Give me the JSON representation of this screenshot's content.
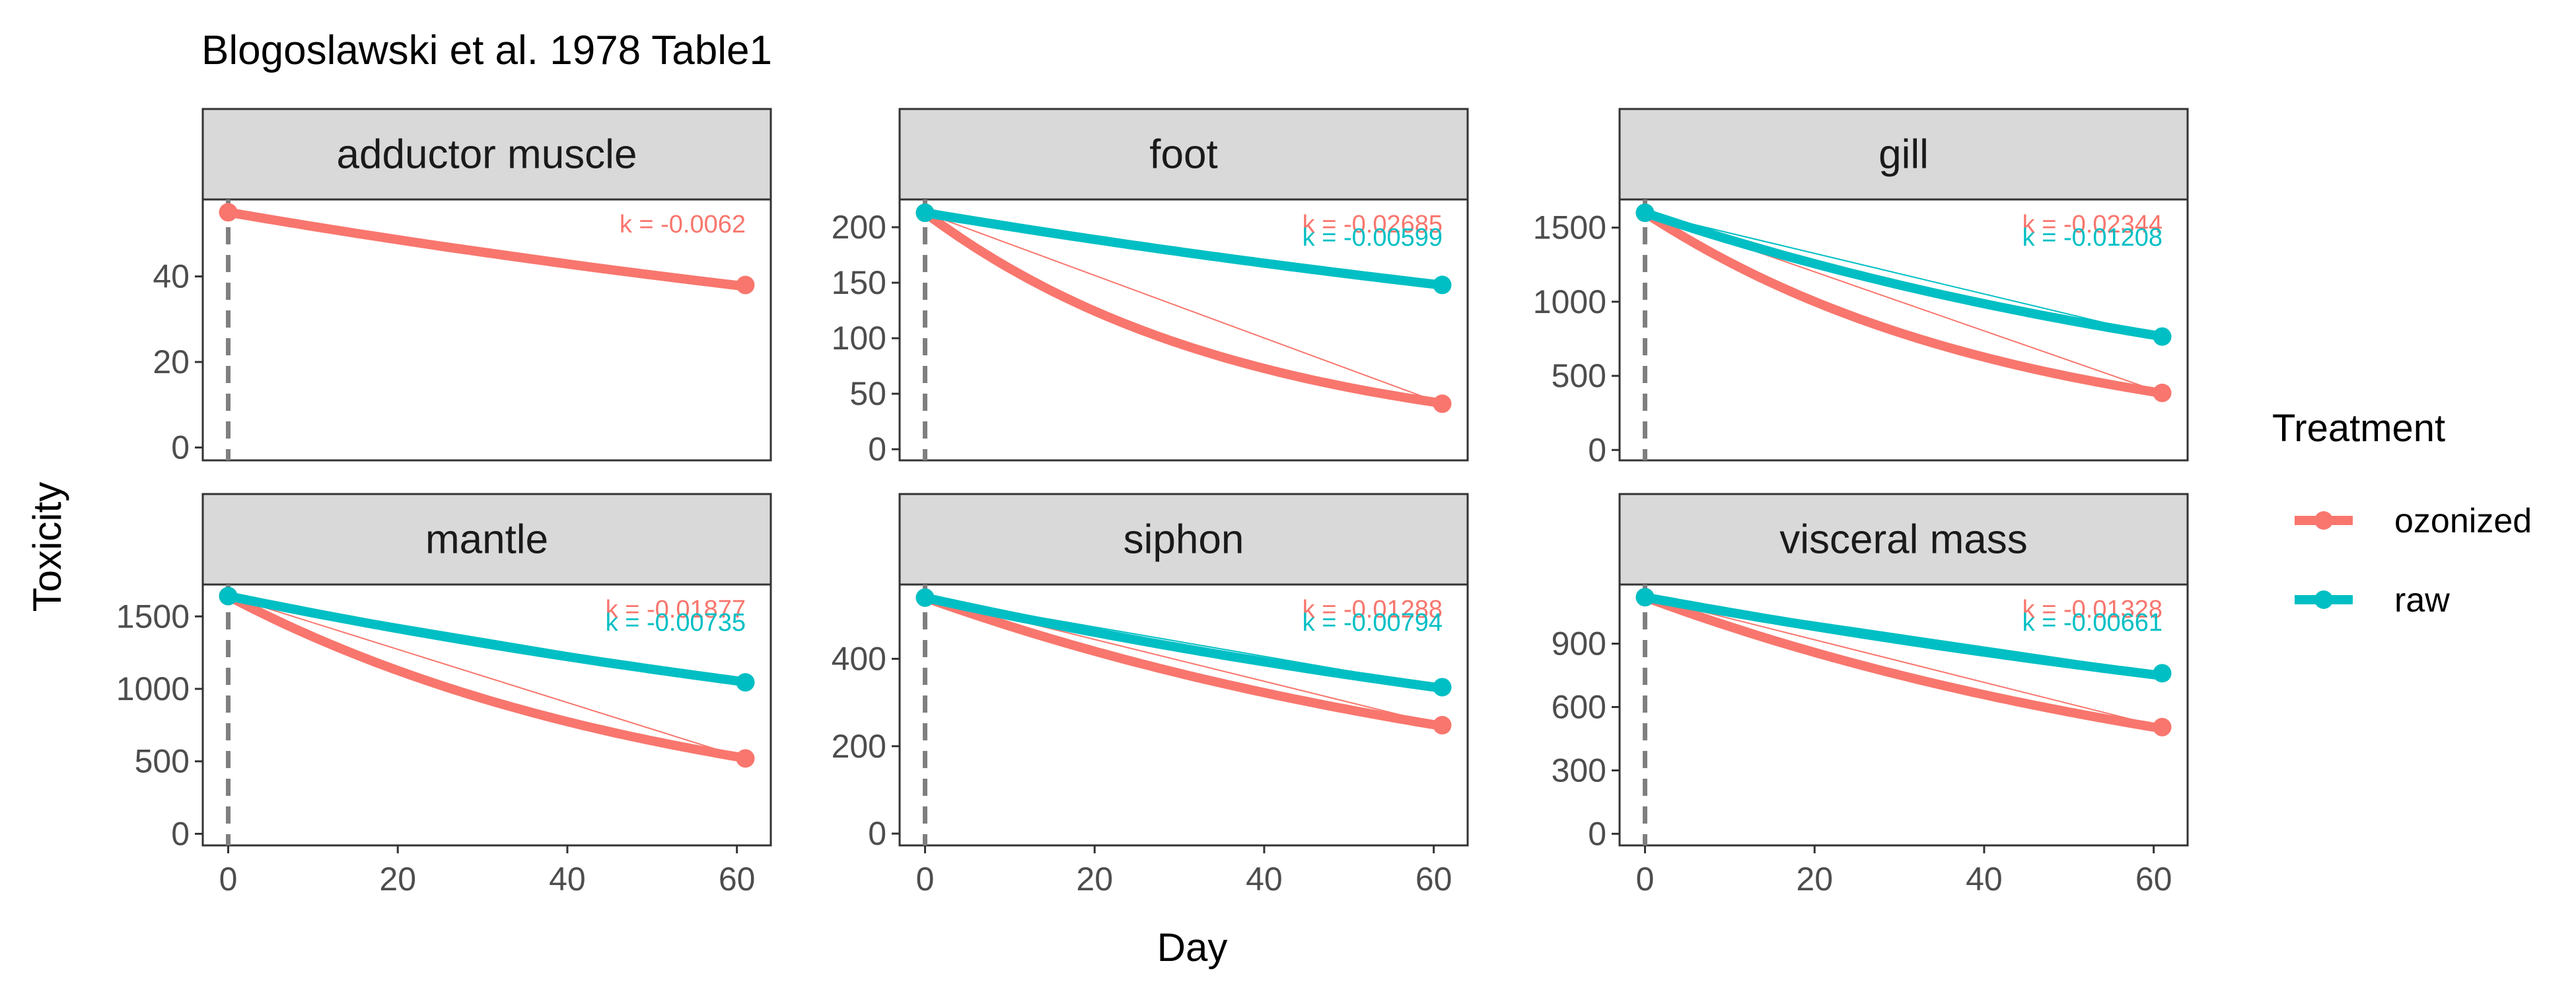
{
  "chart_data": {
    "type": "line",
    "title": "Blogoslawski et al. 1978 Table1",
    "xlabel": "Day",
    "ylabel": "Toxicity",
    "legend": {
      "title": "Treatment",
      "placement": "right",
      "entries": [
        {
          "name": "ozonized",
          "color": "#F8766D"
        },
        {
          "name": "raw",
          "color": "#00BFC4"
        }
      ]
    },
    "x_ticks": [
      0,
      20,
      40,
      60
    ],
    "xlim": [
      -3,
      64
    ],
    "vline_x": 0,
    "panels": [
      {
        "strip": "adductor muscle",
        "ylim": [
          -3,
          58
        ],
        "y_ticks": [
          0,
          20,
          40
        ],
        "series": [
          {
            "name": "ozonized",
            "x": [
              0,
              61
            ],
            "y": [
              55,
              38
            ],
            "k": -0.0062,
            "k_label": "k = -0.0062"
          }
        ]
      },
      {
        "strip": "foot",
        "ylim": [
          -10,
          225
        ],
        "y_ticks": [
          0,
          50,
          100,
          150,
          200
        ],
        "series": [
          {
            "name": "ozonized",
            "x": [
              0,
              61
            ],
            "y": [
              213,
              41
            ],
            "k": -0.02685,
            "k_label": "k = -0.02685"
          },
          {
            "name": "raw",
            "x": [
              0,
              61
            ],
            "y": [
              213,
              148
            ],
            "k": -0.00599,
            "k_label": "k = -0.00599"
          }
        ]
      },
      {
        "strip": "gill",
        "ylim": [
          -70,
          1690
        ],
        "y_ticks": [
          0,
          500,
          1000,
          1500
        ],
        "series": [
          {
            "name": "ozonized",
            "x": [
              0,
              61
            ],
            "y": [
              1600,
              385
            ],
            "k": -0.02344,
            "k_label": "k = -0.02344"
          },
          {
            "name": "raw",
            "x": [
              0,
              61
            ],
            "y": [
              1600,
              765
            ],
            "k": -0.01208,
            "k_label": "k = -0.01208"
          }
        ]
      },
      {
        "strip": "mantle",
        "ylim": [
          -80,
          1720
        ],
        "y_ticks": [
          0,
          500,
          1000,
          1500
        ],
        "series": [
          {
            "name": "ozonized",
            "x": [
              0,
              61
            ],
            "y": [
              1640,
              520
            ],
            "k": -0.01877,
            "k_label": "k = -0.01877"
          },
          {
            "name": "raw",
            "x": [
              0,
              61
            ],
            "y": [
              1640,
              1045
            ],
            "k": -0.00735,
            "k_label": "k = -0.00735"
          }
        ]
      },
      {
        "strip": "siphon",
        "ylim": [
          -27,
          570
        ],
        "y_ticks": [
          0,
          200,
          400
        ],
        "series": [
          {
            "name": "ozonized",
            "x": [
              0,
              61
            ],
            "y": [
              540,
              248
            ],
            "k": -0.01288,
            "k_label": "k = -0.01288"
          },
          {
            "name": "raw",
            "x": [
              0,
              61
            ],
            "y": [
              540,
              335
            ],
            "k": -0.00794,
            "k_label": "k = -0.00794"
          }
        ]
      },
      {
        "strip": "visceral mass",
        "ylim": [
          -55,
          1180
        ],
        "y_ticks": [
          0,
          300,
          600,
          900
        ],
        "series": [
          {
            "name": "ozonized",
            "x": [
              0,
              61
            ],
            "y": [
              1120,
              505
            ],
            "k": -0.01328,
            "k_label": "k = -0.01328"
          },
          {
            "name": "raw",
            "x": [
              0,
              61
            ],
            "y": [
              1120,
              760
            ],
            "k": -0.00661,
            "k_label": "k = -0.00661"
          }
        ]
      }
    ]
  }
}
